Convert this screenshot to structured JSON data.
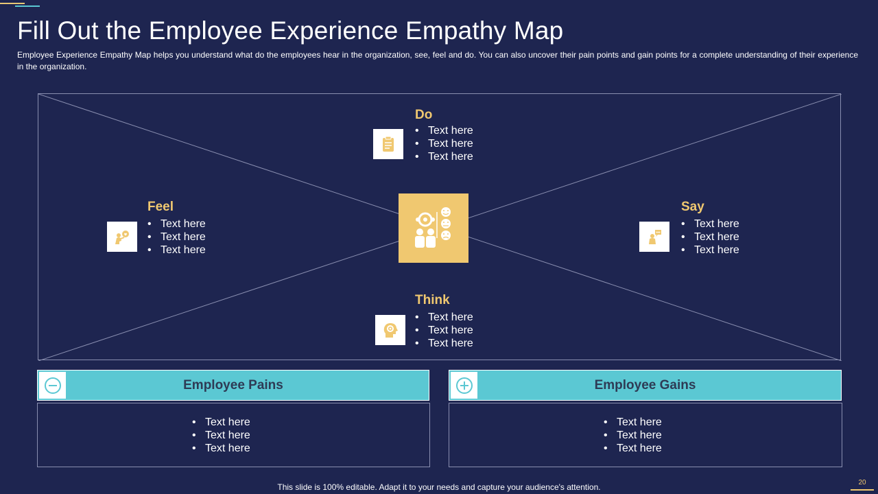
{
  "slide": {
    "title": "Fill Out the Employee Experience Empathy Map",
    "subtitle": "Employee Experience Empathy Map helps you understand what do the employees hear in the organization, see, feel and do. You can also uncover their pain points and gain points for a complete understanding of their experience in the organization.",
    "footer": "This slide is 100% editable. Adapt it to your needs and capture your audience's attention.",
    "page_number": "20"
  },
  "colors": {
    "background": "#1e2550",
    "accent_gold": "#f0c870",
    "accent_teal": "#5bc8d3",
    "line": "#8a8fb0"
  },
  "map": {
    "center_icon": "empathy-people-icon",
    "do": {
      "heading": "Do",
      "icon": "clipboard-icon",
      "items": [
        "Text here",
        "Text here",
        "Text here"
      ]
    },
    "feel": {
      "heading": "Feel",
      "icon": "person-heart-icon",
      "items": [
        "Text here",
        "Text here",
        "Text here"
      ]
    },
    "say": {
      "heading": "Say",
      "icon": "person-speech-icon",
      "items": [
        "Text here",
        "Text here",
        "Text here"
      ]
    },
    "think": {
      "heading": "Think",
      "icon": "head-gear-icon",
      "items": [
        "Text here",
        "Text here",
        "Text here"
      ]
    }
  },
  "pains": {
    "label": "Employee Pains",
    "icon": "minus-circle-icon",
    "items": [
      "Text here",
      "Text here",
      "Text here"
    ]
  },
  "gains": {
    "label": "Employee Gains",
    "icon": "plus-circle-icon",
    "items": [
      "Text here",
      "Text here",
      "Text here"
    ]
  }
}
